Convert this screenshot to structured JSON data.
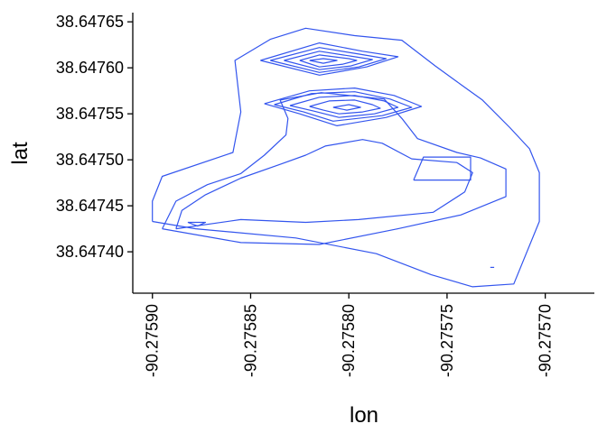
{
  "chart_data": {
    "type": "contour",
    "xlabel": "lon",
    "ylabel": "lat",
    "xlim": [
      -90.27591,
      -90.275675
    ],
    "ylim": [
      38.647355,
      38.64766
    ],
    "x_ticks": [
      -90.2759,
      -90.27585,
      -90.2758,
      -90.27575,
      -90.2757
    ],
    "x_tick_labels": [
      "-90.27590",
      "-90.27585",
      "-90.27580",
      "-90.27575",
      "-90.27570"
    ],
    "y_ticks": [
      38.6474,
      38.64745,
      38.6475,
      38.64755,
      38.6476,
      38.64765
    ],
    "y_tick_labels": [
      "38.64740",
      "38.64745",
      "38.64750",
      "38.64755",
      "38.64760",
      "38.64765"
    ],
    "grid": false,
    "line_color": "#3355ee",
    "contours": [
      {
        "name": "",
        "points": [
          [
            -90.2759,
            38.647433
          ],
          [
            -90.2759,
            38.647455
          ],
          [
            -90.275895,
            38.647482
          ],
          [
            -90.275859,
            38.647508
          ],
          [
            -90.275855,
            38.647552
          ],
          [
            -90.275858,
            38.647608
          ],
          [
            -90.27584,
            38.647631
          ],
          [
            -90.275822,
            38.647643
          ],
          [
            -90.275797,
            38.647635
          ],
          [
            -90.275773,
            38.64763
          ],
          [
            -90.275756,
            38.647602
          ],
          [
            -90.275745,
            38.647585
          ],
          [
            -90.275732,
            38.647565
          ],
          [
            -90.275718,
            38.647535
          ],
          [
            -90.275708,
            38.647512
          ],
          [
            -90.275703,
            38.647486
          ],
          [
            -90.275703,
            38.647433
          ],
          [
            -90.275716,
            38.647365
          ],
          [
            -90.275737,
            38.647362
          ],
          [
            -90.275758,
            38.647375
          ],
          [
            -90.275786,
            38.647398
          ],
          [
            -90.275827,
            38.647415
          ],
          [
            -90.275878,
            38.647425
          ],
          [
            -90.2759,
            38.647433
          ]
        ]
      },
      {
        "name": "",
        "points": [
          [
            -90.275895,
            38.647425
          ],
          [
            -90.275888,
            38.647455
          ],
          [
            -90.275872,
            38.647473
          ],
          [
            -90.275855,
            38.647485
          ],
          [
            -90.275843,
            38.647505
          ],
          [
            -90.275832,
            38.647527
          ],
          [
            -90.275831,
            38.647545
          ],
          [
            -90.275835,
            38.647565
          ],
          [
            -90.275814,
            38.647573
          ],
          [
            -90.275782,
            38.647566
          ],
          [
            -90.275773,
            38.647545
          ],
          [
            -90.275765,
            38.647523
          ],
          [
            -90.275745,
            38.647508
          ],
          [
            -90.275733,
            38.647502
          ],
          [
            -90.27572,
            38.64749
          ],
          [
            -90.27572,
            38.64746
          ],
          [
            -90.275743,
            38.64744
          ],
          [
            -90.275775,
            38.647425
          ],
          [
            -90.275815,
            38.647408
          ],
          [
            -90.275855,
            38.64741
          ],
          [
            -90.275895,
            38.647425
          ]
        ]
      },
      {
        "name": "",
        "points": [
          [
            -90.275888,
            38.647425
          ],
          [
            -90.275885,
            38.647445
          ],
          [
            -90.275873,
            38.647462
          ],
          [
            -90.275855,
            38.64748
          ],
          [
            -90.275835,
            38.647495
          ],
          [
            -90.275822,
            38.647505
          ],
          [
            -90.275812,
            38.647515
          ],
          [
            -90.275793,
            38.647522
          ],
          [
            -90.275783,
            38.647518
          ],
          [
            -90.275768,
            38.647501
          ],
          [
            -90.275745,
            38.647497
          ],
          [
            -90.275737,
            38.647486
          ],
          [
            -90.275741,
            38.647465
          ],
          [
            -90.275757,
            38.647443
          ],
          [
            -90.275795,
            38.647435
          ],
          [
            -90.275822,
            38.647432
          ],
          [
            -90.275855,
            38.647435
          ],
          [
            -90.275888,
            38.647425
          ]
        ]
      },
      {
        "name": "",
        "points": [
          [
            -90.275882,
            38.647432
          ],
          [
            -90.275877,
            38.647428
          ],
          [
            -90.275873,
            38.647432
          ],
          [
            -90.275882,
            38.647432
          ]
        ]
      },
      {
        "name": "",
        "points": [
          [
            -90.275767,
            38.647478
          ],
          [
            -90.275762,
            38.647503
          ],
          [
            -90.275738,
            38.647503
          ],
          [
            -90.275738,
            38.647478
          ],
          [
            -90.275767,
            38.647478
          ]
        ]
      },
      {
        "name": "",
        "points": [
          [
            -90.275843,
            38.647561
          ],
          [
            -90.27582,
            38.647575
          ],
          [
            -90.275797,
            38.647578
          ],
          [
            -90.275777,
            38.64757
          ],
          [
            -90.275763,
            38.647558
          ],
          [
            -90.275781,
            38.647546
          ],
          [
            -90.275806,
            38.647537
          ],
          [
            -90.275825,
            38.64755
          ],
          [
            -90.275843,
            38.647561
          ]
        ]
      },
      {
        "name": "",
        "points": [
          [
            -90.275838,
            38.64756
          ],
          [
            -90.275819,
            38.647572
          ],
          [
            -90.275797,
            38.647574
          ],
          [
            -90.275779,
            38.647566
          ],
          [
            -90.275768,
            38.647557
          ],
          [
            -90.275783,
            38.647548
          ],
          [
            -90.275808,
            38.647542
          ],
          [
            -90.275823,
            38.647552
          ],
          [
            -90.275838,
            38.64756
          ]
        ]
      },
      {
        "name": "",
        "points": [
          [
            -90.27583,
            38.647559
          ],
          [
            -90.275815,
            38.647568
          ],
          [
            -90.275797,
            38.64757
          ],
          [
            -90.275782,
            38.647564
          ],
          [
            -90.275775,
            38.647557
          ],
          [
            -90.275787,
            38.64755
          ],
          [
            -90.275805,
            38.647546
          ],
          [
            -90.275818,
            38.647553
          ],
          [
            -90.27583,
            38.647559
          ]
        ]
      },
      {
        "name": "",
        "points": [
          [
            -90.27582,
            38.647558
          ],
          [
            -90.27581,
            38.647564
          ],
          [
            -90.275797,
            38.647565
          ],
          [
            -90.275788,
            38.64756
          ],
          [
            -90.275784,
            38.647556
          ],
          [
            -90.275793,
            38.647552
          ],
          [
            -90.275805,
            38.64755
          ],
          [
            -90.275813,
            38.647554
          ],
          [
            -90.27582,
            38.647558
          ]
        ]
      },
      {
        "name": "",
        "points": [
          [
            -90.275808,
            38.647557
          ],
          [
            -90.2758,
            38.64756
          ],
          [
            -90.275794,
            38.647557
          ],
          [
            -90.275801,
            38.647554
          ],
          [
            -90.275808,
            38.647557
          ]
        ]
      },
      {
        "name": "",
        "points": [
          [
            -90.275845,
            38.647608
          ],
          [
            -90.275815,
            38.647627
          ],
          [
            -90.275793,
            38.647618
          ],
          [
            -90.275775,
            38.647612
          ],
          [
            -90.275791,
            38.647601
          ],
          [
            -90.275815,
            38.647592
          ],
          [
            -90.275845,
            38.647608
          ]
        ]
      },
      {
        "name": "",
        "points": [
          [
            -90.27584,
            38.647608
          ],
          [
            -90.275815,
            38.647622
          ],
          [
            -90.275795,
            38.647615
          ],
          [
            -90.275781,
            38.64761
          ],
          [
            -90.275795,
            38.647601
          ],
          [
            -90.275815,
            38.647595
          ],
          [
            -90.27584,
            38.647608
          ]
        ]
      },
      {
        "name": "",
        "points": [
          [
            -90.275833,
            38.647608
          ],
          [
            -90.275815,
            38.647618
          ],
          [
            -90.275797,
            38.647612
          ],
          [
            -90.275788,
            38.647609
          ],
          [
            -90.275799,
            38.647602
          ],
          [
            -90.275815,
            38.647598
          ],
          [
            -90.275833,
            38.647608
          ]
        ]
      },
      {
        "name": "",
        "points": [
          [
            -90.275825,
            38.647608
          ],
          [
            -90.275815,
            38.647614
          ],
          [
            -90.2758,
            38.64761
          ],
          [
            -90.275796,
            38.647608
          ],
          [
            -90.275803,
            38.647604
          ],
          [
            -90.275815,
            38.647601
          ],
          [
            -90.275825,
            38.647608
          ]
        ]
      },
      {
        "name": "",
        "points": [
          [
            -90.27582,
            38.647608
          ],
          [
            -90.275813,
            38.64761
          ],
          [
            -90.275806,
            38.647608
          ],
          [
            -90.275813,
            38.647605
          ],
          [
            -90.27582,
            38.647608
          ]
        ]
      },
      {
        "name": "",
        "points": [
          [
            -90.275728,
            38.647383
          ],
          [
            -90.275726,
            38.647383
          ]
        ]
      }
    ]
  }
}
